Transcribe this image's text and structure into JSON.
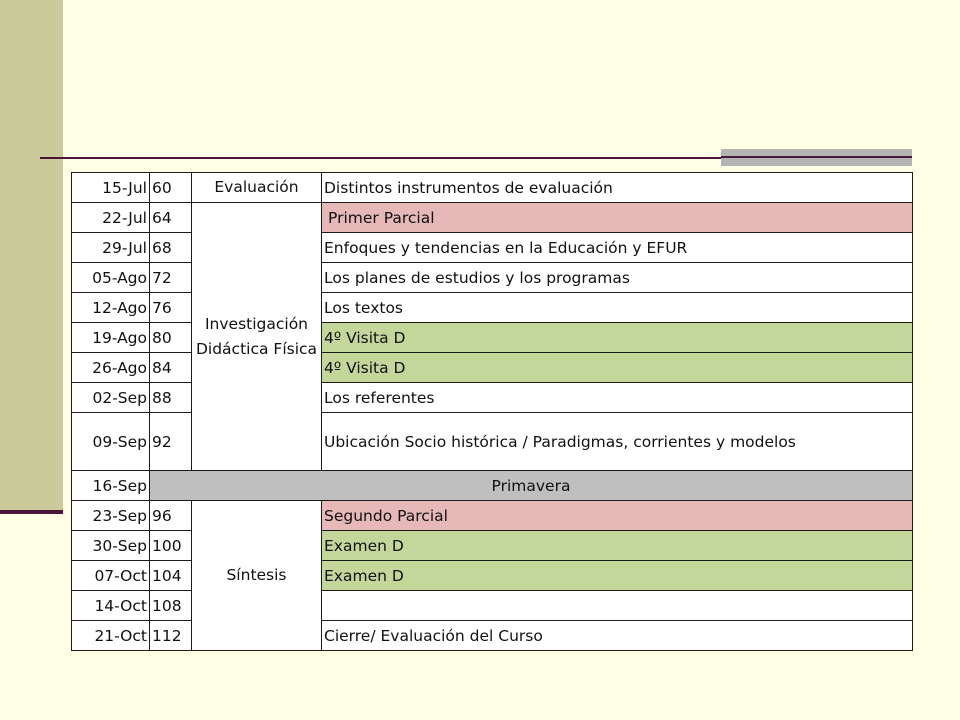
{
  "colors": {
    "background": "#FFFFE5",
    "side_band": "#CACA9A",
    "rule": "#4A1538",
    "pink": "#E6B8B7",
    "green": "#C4D79B",
    "grey": "#BFBFBF"
  },
  "rows": [
    {
      "date": "15-Jul",
      "num": "60",
      "unit": "Evaluación",
      "topic": "Distintos instrumentos de evaluación"
    },
    {
      "date": "22-Jul",
      "num": "64",
      "topic": "Primer Parcial"
    },
    {
      "date": "29-Jul",
      "num": "68",
      "topic": "Enfoques  y tendencias en la Educación y EFUR"
    },
    {
      "date": "05-Ago",
      "num": "72",
      "topic": "Los planes de estudios y los programas"
    },
    {
      "date": "12-Ago",
      "num": "76",
      "topic": "Los textos"
    },
    {
      "date": "19-Ago",
      "num": "80",
      "topic": "4º Visita D"
    },
    {
      "date": "26-Ago",
      "num": "84",
      "topic": "4º Visita D"
    },
    {
      "date": "02-Sep",
      "num": "88",
      "topic": "Los referentes"
    },
    {
      "date": "09-Sep",
      "num": "92",
      "topic": "Ubicación Socio histórica / Paradigmas, corrientes y modelos"
    },
    {
      "date": "16-Sep",
      "topic": "Primavera"
    },
    {
      "date": "23-Sep",
      "num": "96",
      "topic": "Segundo Parcial"
    },
    {
      "date": "30-Sep",
      "num": "100",
      "topic": "Examen D"
    },
    {
      "date": "07-Oct",
      "num": "104",
      "topic": "Examen D"
    },
    {
      "date": "14-Oct",
      "num": "108",
      "topic": ""
    },
    {
      "date": "21-Oct",
      "num": "112",
      "topic": "Cierre/ Evaluación del Curso"
    }
  ],
  "units": {
    "investigacion": "Investigación Didáctica Física",
    "sintesis": "Síntesis"
  }
}
